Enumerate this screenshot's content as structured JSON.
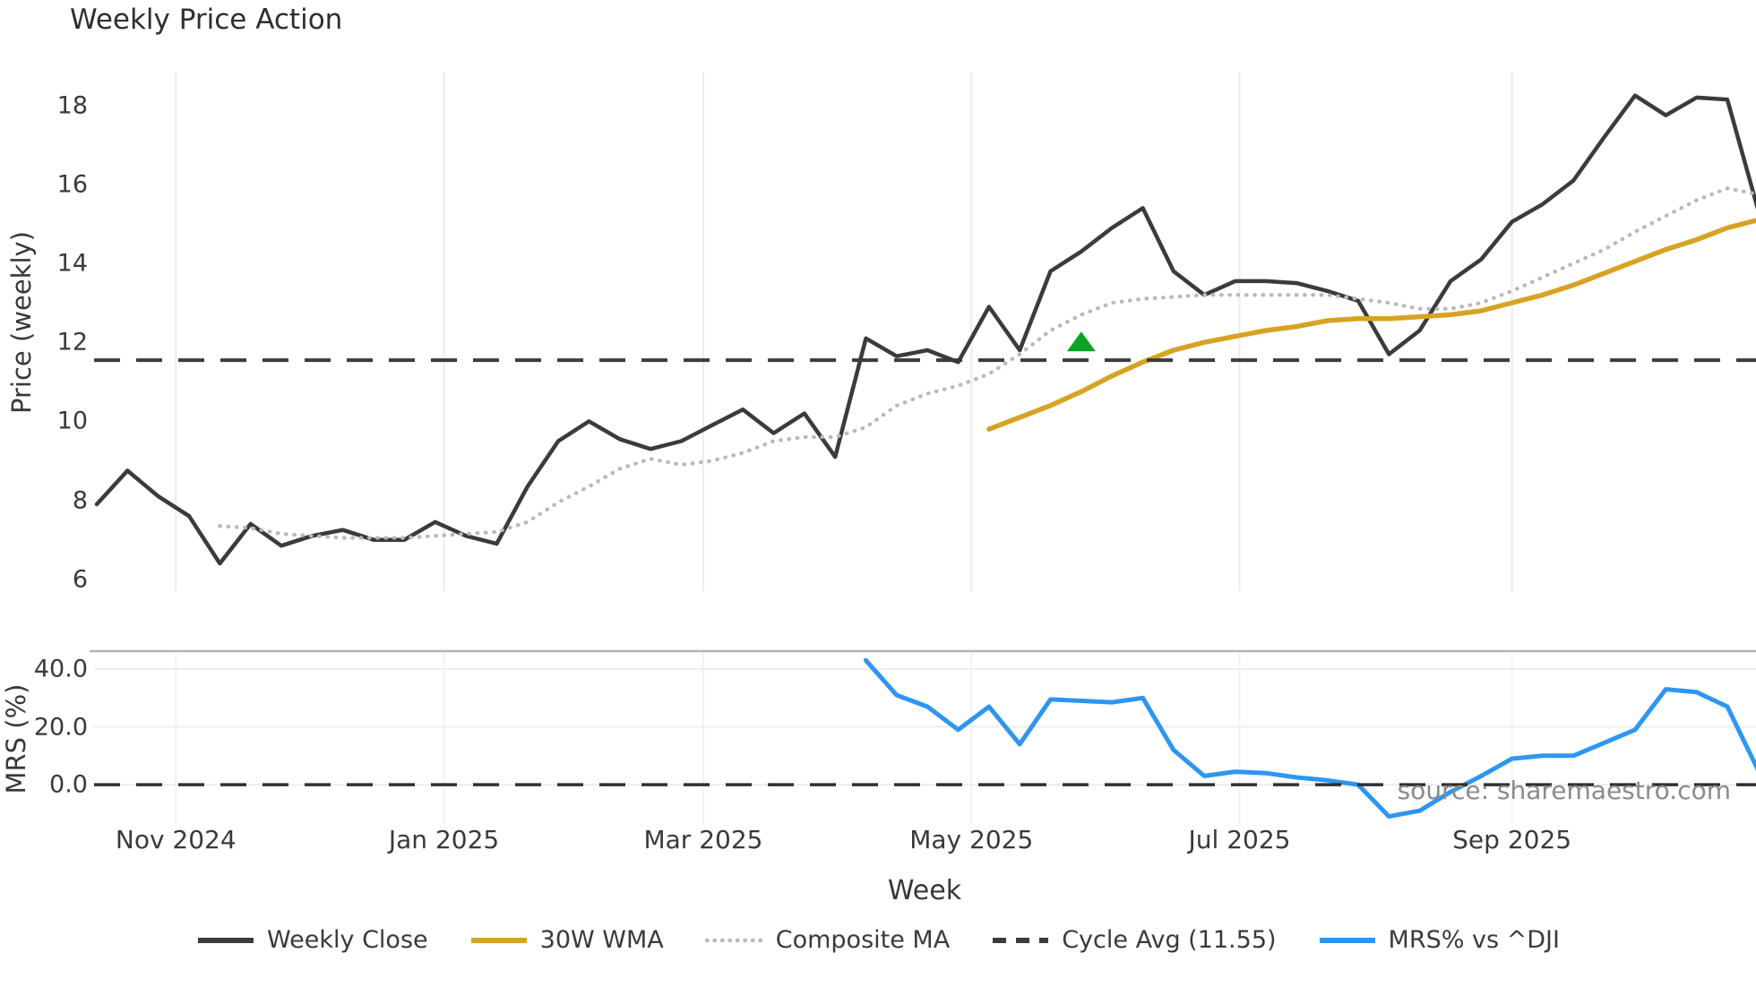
{
  "title": "Weekly Price Action",
  "source_note": "source: sharemaestro.com",
  "top_panel": {
    "ylabel": "Price (weekly)",
    "yticks": [
      {
        "label": "18",
        "value": 18
      },
      {
        "label": "16",
        "value": 16
      },
      {
        "label": "14",
        "value": 14
      },
      {
        "label": "12",
        "value": 12
      },
      {
        "label": "10",
        "value": 10
      },
      {
        "label": "8",
        "value": 8
      },
      {
        "label": "6",
        "value": 6
      }
    ],
    "ylim": [
      5.7,
      18.9
    ]
  },
  "bottom_panel": {
    "ylabel": "MRS (%)",
    "yticks": [
      {
        "label": "40.0",
        "value": 40
      },
      {
        "label": "20.0",
        "value": 20
      },
      {
        "label": "0.0",
        "value": 0
      }
    ],
    "ylim": [
      -13.6,
      46.2
    ]
  },
  "xaxis": {
    "label": "Week",
    "ticks": [
      {
        "label": "Nov 2024",
        "week": 2.571
      },
      {
        "label": "Jan 2025",
        "week": 11.286
      },
      {
        "label": "Mar 2025",
        "week": 19.714
      },
      {
        "label": "May 2025",
        "week": 28.429
      },
      {
        "label": "Jul 2025",
        "week": 37.143
      },
      {
        "label": "Sep 2025",
        "week": 46.0
      }
    ]
  },
  "legend": [
    {
      "label": "Weekly Close",
      "style": "solid",
      "color": "#3b3b3b"
    },
    {
      "label": "30W WMA",
      "style": "solid",
      "color": "#d6a323"
    },
    {
      "label": "Composite MA",
      "style": "dotted",
      "color": "#b9b9b9"
    },
    {
      "label": "Cycle Avg (11.55)",
      "style": "dashed",
      "color": "#3b3b3b"
    },
    {
      "label": "MRS% vs ^DJI",
      "style": "solid",
      "color": "#2e96f0"
    }
  ],
  "colors": {
    "grid": "#e9edf4",
    "grid_faint": "#f0f2f7",
    "panel_border": "#b3b3b3",
    "zero_dash": "#2f2f2f",
    "cycle_dash": "#3b3b3b",
    "signal_green": "#0ca321"
  },
  "chart_data": [
    {
      "panel": "price",
      "type": "line",
      "title": "Weekly Price Action",
      "ylabel": "Price (weekly)",
      "ylim": [
        5.7,
        18.9
      ],
      "x_unit": "week_index",
      "series": [
        {
          "name": "Weekly Close",
          "style": "solid",
          "color": "#3b3b3b",
          "width": 4.5,
          "start_week": 0,
          "values": [
            7.9,
            8.75,
            8.1,
            7.6,
            6.4,
            7.4,
            6.85,
            7.1,
            7.25,
            7.0,
            7.0,
            7.45,
            7.1,
            6.9,
            8.35,
            9.5,
            10.0,
            9.55,
            9.3,
            9.5,
            9.9,
            10.3,
            9.7,
            10.2,
            9.1,
            12.1,
            11.65,
            11.8,
            11.5,
            12.9,
            11.8,
            13.8,
            14.3,
            14.9,
            15.4,
            13.8,
            13.2,
            13.55,
            13.55,
            13.5,
            13.3,
            13.05,
            11.7,
            12.3,
            13.55,
            14.1,
            15.05,
            15.5,
            16.1,
            17.2,
            18.25,
            17.75,
            18.2,
            18.15,
            15.35
          ]
        },
        {
          "name": "30W WMA",
          "style": "solid",
          "color": "#d6a323",
          "width": 5.5,
          "start_week": 29,
          "values": [
            9.8,
            10.1,
            10.4,
            10.75,
            11.15,
            11.5,
            11.8,
            12.0,
            12.15,
            12.3,
            12.4,
            12.55,
            12.6,
            12.6,
            12.65,
            12.7,
            12.8,
            13.0,
            13.2,
            13.45,
            13.75,
            14.05,
            14.35,
            14.6,
            14.9,
            15.1
          ]
        },
        {
          "name": "Composite MA",
          "style": "dotted",
          "color": "#b9b9b9",
          "width": 4.3,
          "start_week": 4,
          "values": [
            7.35,
            7.3,
            7.15,
            7.1,
            7.05,
            7.05,
            7.05,
            7.1,
            7.15,
            7.2,
            7.45,
            7.95,
            8.35,
            8.8,
            9.05,
            8.9,
            9.0,
            9.2,
            9.5,
            9.6,
            9.6,
            9.85,
            10.4,
            10.7,
            10.9,
            11.2,
            11.7,
            12.3,
            12.7,
            13.0,
            13.1,
            13.15,
            13.2,
            13.2,
            13.2,
            13.2,
            13.2,
            13.1,
            13.0,
            12.85,
            12.85,
            13.0,
            13.3,
            13.65,
            14.0,
            14.35,
            14.8,
            15.2,
            15.6,
            15.9,
            15.75
          ]
        },
        {
          "name": "Cycle Avg",
          "style": "dashed",
          "color": "#3b3b3b",
          "width": 4,
          "constant": 11.55
        }
      ],
      "markers": [
        {
          "name": "buy-signal",
          "shape": "triangle-up",
          "color": "#0ca321",
          "week": 32,
          "value": 12.0
        }
      ]
    },
    {
      "panel": "mrs",
      "type": "line",
      "ylabel": "MRS (%)",
      "ylim": [
        -13.6,
        46.2
      ],
      "x_unit": "week_index",
      "series": [
        {
          "name": "MRS% vs ^DJI",
          "style": "solid",
          "color": "#2e96f0",
          "width": 5,
          "start_week": 25,
          "values": [
            43,
            31,
            27,
            19,
            27,
            14,
            29.5,
            29,
            28.5,
            30,
            12,
            3,
            4.5,
            4,
            2.5,
            1.5,
            0,
            -11,
            -9,
            -2.5,
            3,
            9,
            10,
            10,
            14.5,
            19,
            33,
            32,
            27,
            5
          ]
        },
        {
          "name": "Zero Line",
          "style": "dashed",
          "color": "#2f2f2f",
          "width": 3.5,
          "constant": 0
        }
      ]
    }
  ]
}
